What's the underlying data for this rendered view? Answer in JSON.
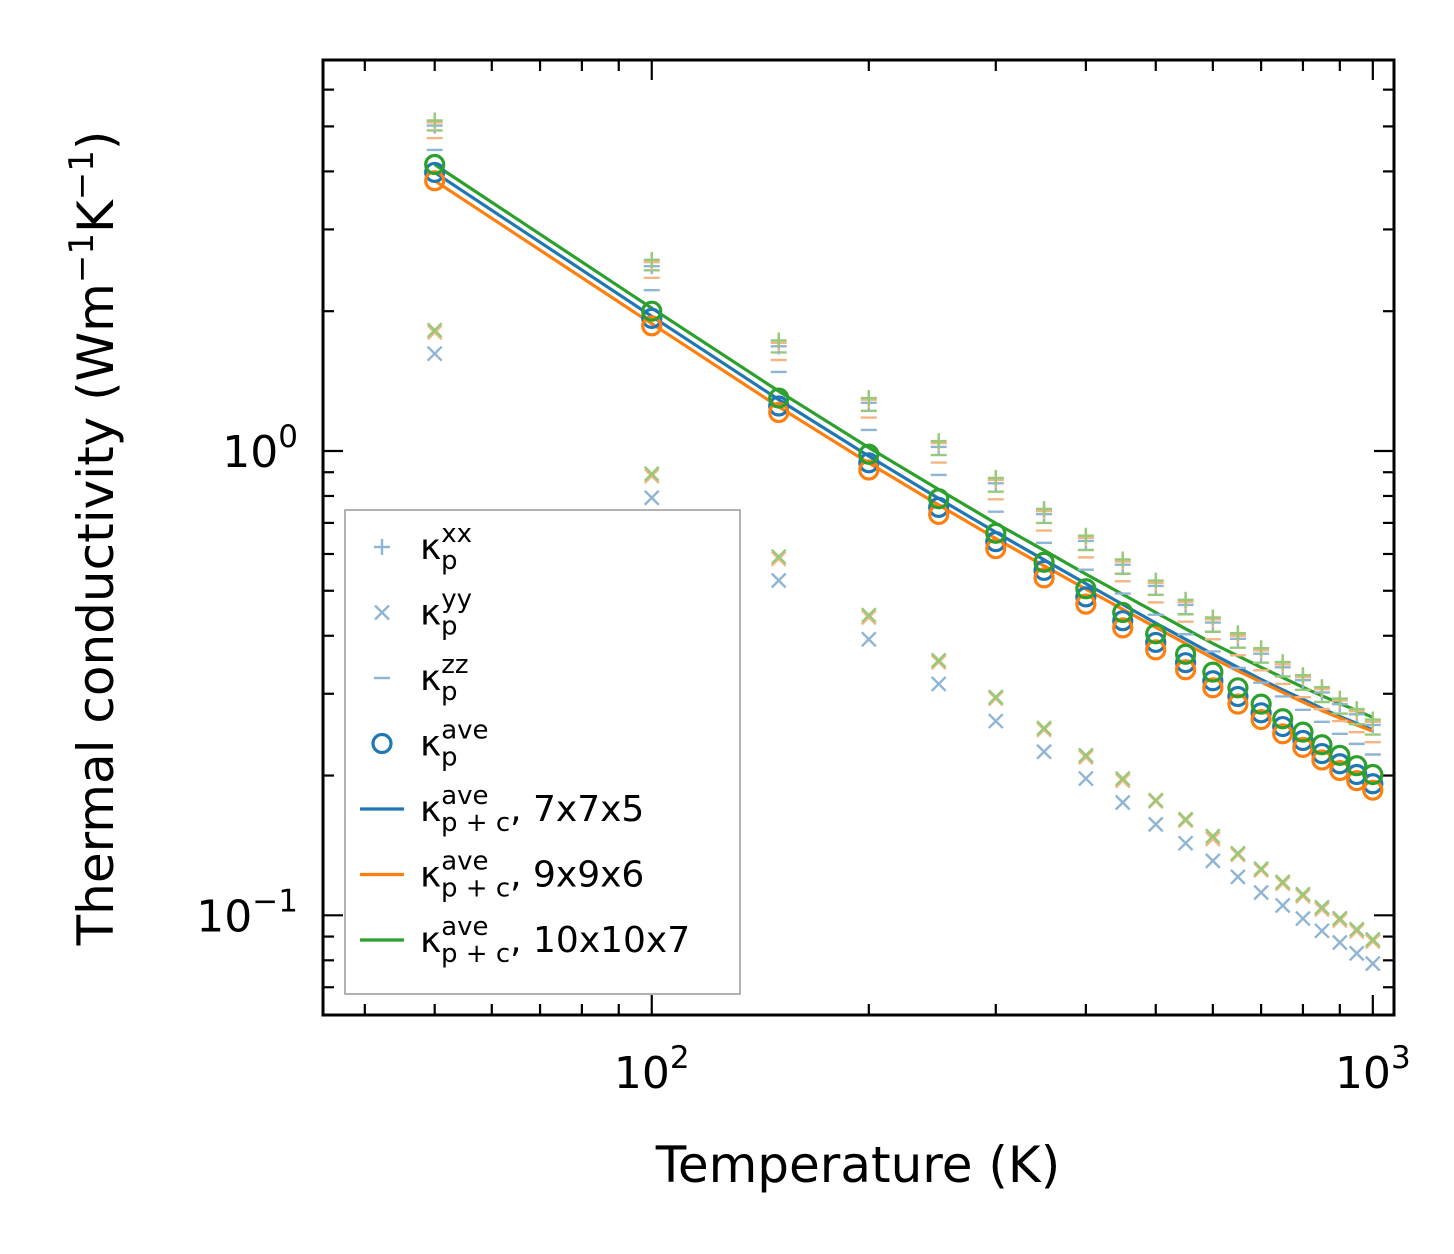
{
  "chart_data": {
    "type": "scatter",
    "xscale": "log",
    "yscale": "log",
    "xlim": [
      35,
      1070
    ],
    "ylim": [
      0.061,
      6.95
    ],
    "xlabel": "Temperature (K)",
    "ylabel": {
      "prefix": "Thermal conductivity (Wm",
      "sup1": "−1",
      "mid": "K",
      "sup2": "−1",
      "suffix": ")"
    },
    "xticks": [
      {
        "base": "10",
        "exp": "2",
        "value": 100
      },
      {
        "base": "10",
        "exp": "3",
        "value": 1000
      }
    ],
    "yticks": [
      {
        "base": "10",
        "exp": "−1",
        "value": 0.1
      },
      {
        "base": "10",
        "exp": "0",
        "value": 1
      }
    ],
    "x": [
      50,
      100,
      150,
      200,
      250,
      300,
      350,
      400,
      450,
      500,
      550,
      600,
      650,
      700,
      750,
      800,
      850,
      900,
      950,
      1000
    ],
    "series": [
      {
        "name": "kxx_7x7x5",
        "kind": "plus",
        "color": "#8fb5d5",
        "values": [
          5.02,
          2.5,
          1.68,
          1.27,
          1.02,
          0.852,
          0.731,
          0.64,
          0.569,
          0.512,
          0.466,
          0.427,
          0.394,
          0.366,
          0.342,
          0.321,
          0.302,
          0.285,
          0.271,
          0.257
        ]
      },
      {
        "name": "kxx_9x9x6",
        "kind": "plus",
        "color": "#f5b582",
        "values": [
          5.1,
          2.55,
          1.71,
          1.29,
          1.04,
          0.866,
          0.742,
          0.65,
          0.578,
          0.52,
          0.473,
          0.434,
          0.4,
          0.372,
          0.347,
          0.326,
          0.307,
          0.29,
          0.275,
          0.261
        ]
      },
      {
        "name": "kxx_10x10x7",
        "kind": "plus",
        "color": "#97c97a",
        "values": [
          5.15,
          2.58,
          1.73,
          1.3,
          1.05,
          0.875,
          0.75,
          0.657,
          0.584,
          0.526,
          0.478,
          0.438,
          0.405,
          0.376,
          0.351,
          0.329,
          0.31,
          0.293,
          0.278,
          0.264
        ]
      },
      {
        "name": "kyy_7x7x5",
        "kind": "cross",
        "color": "#8fb5d5",
        "values": [
          1.62,
          0.793,
          0.526,
          0.393,
          0.315,
          0.262,
          0.225,
          0.197,
          0.175,
          0.157,
          0.143,
          0.131,
          0.121,
          0.112,
          0.105,
          0.0984,
          0.0926,
          0.0874,
          0.0828,
          0.0787
        ]
      },
      {
        "name": "kyy_9x9x6",
        "kind": "cross",
        "color": "#f5b582",
        "values": [
          1.8,
          0.883,
          0.586,
          0.438,
          0.351,
          0.293,
          0.251,
          0.219,
          0.195,
          0.176,
          0.16,
          0.146,
          0.135,
          0.125,
          0.117,
          0.11,
          0.103,
          0.0975,
          0.0924,
          0.0878
        ]
      },
      {
        "name": "kyy_10x10x7",
        "kind": "cross",
        "color": "#97c97a",
        "values": [
          1.82,
          0.893,
          0.592,
          0.443,
          0.354,
          0.295,
          0.253,
          0.221,
          0.197,
          0.177,
          0.161,
          0.148,
          0.136,
          0.126,
          0.118,
          0.111,
          0.104,
          0.0985,
          0.0933,
          0.0887
        ]
      },
      {
        "name": "kzz_7x7x5",
        "kind": "dash",
        "color": "#8fb5d5",
        "values": [
          4.45,
          2.22,
          1.48,
          1.11,
          0.888,
          0.74,
          0.634,
          0.555,
          0.493,
          0.444,
          0.403,
          0.37,
          0.341,
          0.317,
          0.296,
          0.277,
          0.261,
          0.246,
          0.234,
          0.222
        ]
      },
      {
        "name": "kzz_9x9x6",
        "kind": "dash",
        "color": "#f5b582",
        "values": [
          4.72,
          2.36,
          1.57,
          1.18,
          0.944,
          0.787,
          0.674,
          0.59,
          0.524,
          0.472,
          0.429,
          0.393,
          0.363,
          0.337,
          0.315,
          0.295,
          0.278,
          0.262,
          0.248,
          0.236
        ]
      },
      {
        "name": "kzz_10x10x7",
        "kind": "dash",
        "color": "#97c97a",
        "values": [
          4.9,
          2.45,
          1.63,
          1.22,
          0.98,
          0.817,
          0.7,
          0.612,
          0.544,
          0.49,
          0.445,
          0.408,
          0.377,
          0.35,
          0.327,
          0.306,
          0.288,
          0.272,
          0.258,
          0.245
        ]
      },
      {
        "name": "kave_p_7x7x5",
        "kind": "circle",
        "color": "#1f77b4",
        "values": [
          3.98,
          1.93,
          1.25,
          0.943,
          0.756,
          0.638,
          0.553,
          0.485,
          0.431,
          0.387,
          0.35,
          0.32,
          0.296,
          0.273,
          0.255,
          0.238,
          0.223,
          0.212,
          0.201,
          0.192
        ]
      },
      {
        "name": "kave_p_9x9x6",
        "kind": "circle",
        "color": "#ff7f0e",
        "values": [
          3.82,
          1.86,
          1.21,
          0.91,
          0.73,
          0.616,
          0.533,
          0.468,
          0.416,
          0.373,
          0.338,
          0.309,
          0.285,
          0.264,
          0.246,
          0.23,
          0.216,
          0.205,
          0.195,
          0.186
        ]
      },
      {
        "name": "kave_p_10x10x7",
        "kind": "circle",
        "color": "#2ca02c",
        "values": [
          4.14,
          2.0,
          1.3,
          0.984,
          0.789,
          0.665,
          0.576,
          0.505,
          0.449,
          0.404,
          0.365,
          0.334,
          0.309,
          0.285,
          0.265,
          0.248,
          0.233,
          0.221,
          0.21,
          0.201
        ]
      },
      {
        "name": "kave_pc_7x7x5",
        "kind": "line",
        "color": "#1f77b4",
        "values": [
          3.98,
          1.95,
          1.29,
          0.975,
          0.79,
          0.668,
          0.583,
          0.518,
          0.467,
          0.426,
          0.393,
          0.365,
          0.342,
          0.322,
          0.306,
          0.292,
          0.279,
          0.268,
          0.259,
          0.251
        ]
      },
      {
        "name": "kave_pc_9x9x6",
        "kind": "line",
        "color": "#ff7f0e",
        "values": [
          3.82,
          1.88,
          1.245,
          0.942,
          0.765,
          0.648,
          0.566,
          0.504,
          0.456,
          0.417,
          0.385,
          0.358,
          0.336,
          0.318,
          0.302,
          0.288,
          0.276,
          0.266,
          0.257,
          0.249
        ]
      },
      {
        "name": "kave_pc_10x10x7",
        "kind": "line",
        "color": "#2ca02c",
        "values": [
          4.14,
          2.03,
          1.345,
          1.017,
          0.826,
          0.699,
          0.611,
          0.543,
          0.491,
          0.449,
          0.414,
          0.385,
          0.362,
          0.342,
          0.325,
          0.31,
          0.297,
          0.286,
          0.276,
          0.267
        ]
      }
    ],
    "legend": {
      "position": "lower-left",
      "entries": [
        {
          "kind": "plus",
          "color": "#8fb5d5",
          "main": "κ",
          "sup": "xx",
          "sub": "p",
          "extra": ""
        },
        {
          "kind": "cross",
          "color": "#8fb5d5",
          "main": "κ",
          "sup": "yy",
          "sub": "p",
          "extra": ""
        },
        {
          "kind": "dash",
          "color": "#8fb5d5",
          "main": "κ",
          "sup": "zz",
          "sub": "p",
          "extra": ""
        },
        {
          "kind": "circle",
          "color": "#1f77b4",
          "main": "κ",
          "sup": "ave",
          "sub": "p",
          "extra": ""
        },
        {
          "kind": "line",
          "color": "#1f77b4",
          "main": "κ",
          "sup": "ave",
          "sub": "p + c",
          "extra": ", 7x7x5"
        },
        {
          "kind": "line",
          "color": "#ff7f0e",
          "main": "κ",
          "sup": "ave",
          "sub": "p + c",
          "extra": ", 9x9x6"
        },
        {
          "kind": "line",
          "color": "#2ca02c",
          "main": "κ",
          "sup": "ave",
          "sub": "p + c",
          "extra": ", 10x10x7"
        }
      ]
    }
  }
}
